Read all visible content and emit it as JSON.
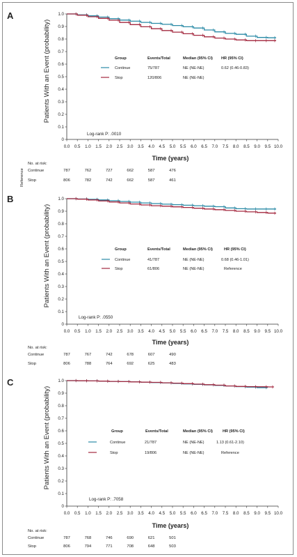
{
  "chart_data": [
    {
      "type": "line",
      "panel_label": "A",
      "ylabel": "Patients With an Event (probability)",
      "xlabel": "Time (years)",
      "ylim": [
        0,
        1.0
      ],
      "xlim": [
        0,
        10.0
      ],
      "y_ticks": [
        "1.0",
        "0.9",
        "0.8",
        "0.7",
        "0.6",
        "0.5",
        "0.4",
        "0.3",
        "0.2",
        "0.1",
        "0"
      ],
      "x_ticks": [
        "0.0",
        "0.5",
        "1.0",
        "1.5",
        "2.0",
        "2.5",
        "3.0",
        "3.5",
        "4.0",
        "4.5",
        "5.0",
        "5.5",
        "6.0",
        "6.5",
        "7.0",
        "7.5",
        "8.0",
        "8.5",
        "9.0",
        "9.5",
        "10.0"
      ],
      "legend": {
        "headers": [
          "Group",
          "Events/Total",
          "Median (95% CI)",
          "HR (95% CI)"
        ],
        "rows": [
          [
            "Continue",
            "75/787",
            "NE (NE-NE)",
            "0.62 (0.46-0.83)"
          ],
          [
            "Stop",
            "120/806",
            "NE (NE-NE)",
            ""
          ]
        ]
      },
      "annotation": "Log-rank P: .0010",
      "risk_title": "No. at risk:",
      "risk_rows": [
        {
          "label": "Continue",
          "values": [
            "787",
            "762",
            "727",
            "662",
            "587",
            "476"
          ]
        },
        {
          "label": "Stop",
          "values": [
            "806",
            "782",
            "742",
            "662",
            "587",
            "461"
          ]
        }
      ],
      "side_note": "Reference",
      "series": [
        {
          "name": "Continue",
          "color": "#2a8aa6",
          "x": [
            0,
            0.5,
            1,
            1.5,
            2,
            2.5,
            3,
            3.5,
            4,
            4.5,
            5,
            5.5,
            6,
            6.5,
            7,
            7.5,
            8,
            8.5,
            9,
            9.5,
            9.9
          ],
          "y": [
            1.0,
            0.993,
            0.985,
            0.975,
            0.962,
            0.951,
            0.942,
            0.933,
            0.925,
            0.917,
            0.908,
            0.898,
            0.888,
            0.872,
            0.857,
            0.845,
            0.838,
            0.823,
            0.813,
            0.81,
            0.81
          ]
        },
        {
          "name": "Stop",
          "color": "#a3283f",
          "x": [
            0,
            0.5,
            1,
            1.5,
            2,
            2.5,
            3,
            3.5,
            4,
            4.5,
            5,
            5.5,
            6,
            6.5,
            7,
            7.5,
            8,
            8.5,
            9,
            9.5,
            9.9
          ],
          "y": [
            1.0,
            0.99,
            0.978,
            0.965,
            0.95,
            0.932,
            0.915,
            0.898,
            0.882,
            0.868,
            0.855,
            0.842,
            0.83,
            0.818,
            0.808,
            0.8,
            0.793,
            0.787,
            0.787,
            0.787,
            0.787
          ]
        }
      ]
    },
    {
      "type": "line",
      "panel_label": "B",
      "ylabel": "Patients With an Event (probability)",
      "xlabel": "Time (years)",
      "ylim": [
        0,
        1.0
      ],
      "xlim": [
        0,
        10.0
      ],
      "y_ticks": [
        "1.0",
        "0.9",
        "0.8",
        "0.7",
        "0.6",
        "0.5",
        "0.4",
        "0.3",
        "0.2",
        "0.1",
        "0"
      ],
      "x_ticks": [
        "0.0",
        "0.5",
        "1.0",
        "1.5",
        "2.0",
        "2.5",
        "3.0",
        "3.5",
        "4.0",
        "4.5",
        "5.0",
        "5.5",
        "6.0",
        "6.5",
        "7.0",
        "7.5",
        "8.0",
        "8.5",
        "9.0",
        "9.5",
        "10.0"
      ],
      "legend": {
        "headers": [
          "Group",
          "Events/Total",
          "Median (95% CI)",
          "HR (95% CI)"
        ],
        "rows": [
          [
            "Continue",
            "41/787",
            "NE (NE-NE)",
            "0.68 (0.46-1.01)"
          ],
          [
            "Stop",
            "61/806",
            "NE (NE-NE)",
            "Reference"
          ]
        ]
      },
      "annotation": "Log-rank P: .0550",
      "risk_title": "No. at risk:",
      "risk_rows": [
        {
          "label": "Continue",
          "values": [
            "787",
            "767",
            "742",
            "678",
            "607",
            "490"
          ]
        },
        {
          "label": "Stop",
          "values": [
            "806",
            "788",
            "764",
            "692",
            "625",
            "483"
          ]
        }
      ],
      "series": [
        {
          "name": "Continue",
          "color": "#2a8aa6",
          "x": [
            0,
            0.5,
            1,
            1.5,
            2,
            2.5,
            3,
            3.5,
            4,
            4.5,
            5,
            5.5,
            6,
            6.5,
            7,
            7.5,
            8,
            8.5,
            9,
            9.5,
            9.9
          ],
          "y": [
            1.0,
            0.998,
            0.995,
            0.99,
            0.984,
            0.978,
            0.972,
            0.966,
            0.961,
            0.956,
            0.952,
            0.948,
            0.944,
            0.94,
            0.936,
            0.926,
            0.92,
            0.918,
            0.918,
            0.918,
            0.918
          ]
        },
        {
          "name": "Stop",
          "color": "#a3283f",
          "x": [
            0,
            0.5,
            1,
            1.5,
            2,
            2.5,
            3,
            3.5,
            4,
            4.5,
            5,
            5.5,
            6,
            6.5,
            7,
            7.5,
            8,
            8.5,
            9,
            9.5,
            9.9
          ],
          "y": [
            1.0,
            0.996,
            0.99,
            0.982,
            0.974,
            0.966,
            0.958,
            0.95,
            0.944,
            0.94,
            0.935,
            0.93,
            0.924,
            0.918,
            0.912,
            0.906,
            0.9,
            0.895,
            0.89,
            0.885,
            0.885
          ]
        }
      ]
    },
    {
      "type": "line",
      "panel_label": "C",
      "ylabel": "Patients With an Event (probability)",
      "xlabel": "Time (years)",
      "ylim": [
        0,
        1.0
      ],
      "xlim": [
        0,
        10.0
      ],
      "y_ticks": [
        "1.0",
        "0.9",
        "0.8",
        "0.7",
        "0.6",
        "0.5",
        "0.4",
        "0.3",
        "0.2",
        "0.1",
        "0"
      ],
      "x_ticks": [
        "0.0",
        "0.5",
        "1.0",
        "1.5",
        "2.0",
        "2.5",
        "3.0",
        "3.5",
        "4.0",
        "4.5",
        "5.0",
        "5.5",
        "6.0",
        "6.5",
        "7.0",
        "7.5",
        "8.0",
        "8.5",
        "9.0",
        "9.5",
        "10.0"
      ],
      "legend": {
        "headers": [
          "Group",
          "Events/Total",
          "Median (95% CI)",
          "HR (95% CI)"
        ],
        "rows": [
          [
            "Continue",
            "21/787",
            "NE (NE-NE)",
            "1.13 (0.61-2.10)"
          ],
          [
            "Stop",
            "19/806",
            "NE (NE-NE)",
            "Reference"
          ]
        ]
      },
      "annotation": "Log-rank P: .7058",
      "risk_title": "No. at risk:",
      "risk_rows": [
        {
          "label": "Continue",
          "values": [
            "787",
            "768",
            "746",
            "690",
            "621",
            "501"
          ]
        },
        {
          "label": "Stop",
          "values": [
            "806",
            "794",
            "771",
            "708",
            "648",
            "503"
          ]
        }
      ],
      "series": [
        {
          "name": "Continue",
          "color": "#2a8aa6",
          "x": [
            0,
            0.5,
            1,
            1.5,
            2,
            2.5,
            3,
            3.5,
            4,
            4.5,
            5,
            5.5,
            6,
            6.5,
            7,
            7.5,
            8,
            8.5,
            9,
            9.5
          ],
          "y": [
            1.0,
            0.999,
            0.998,
            0.996,
            0.994,
            0.992,
            0.99,
            0.988,
            0.985,
            0.982,
            0.978,
            0.974,
            0.97,
            0.966,
            0.962,
            0.958,
            0.952,
            0.948,
            0.944,
            0.944
          ]
        },
        {
          "name": "Stop",
          "color": "#a3283f",
          "x": [
            0,
            0.5,
            1,
            1.5,
            2,
            2.5,
            3,
            3.5,
            4,
            4.5,
            5,
            5.5,
            6,
            6.5,
            7,
            7.5,
            8,
            8.5,
            9,
            9.5,
            9.8
          ],
          "y": [
            1.0,
            0.999,
            0.998,
            0.996,
            0.994,
            0.992,
            0.99,
            0.988,
            0.986,
            0.983,
            0.98,
            0.976,
            0.972,
            0.968,
            0.964,
            0.958,
            0.954,
            0.952,
            0.951,
            0.95,
            0.95
          ]
        }
      ]
    }
  ]
}
